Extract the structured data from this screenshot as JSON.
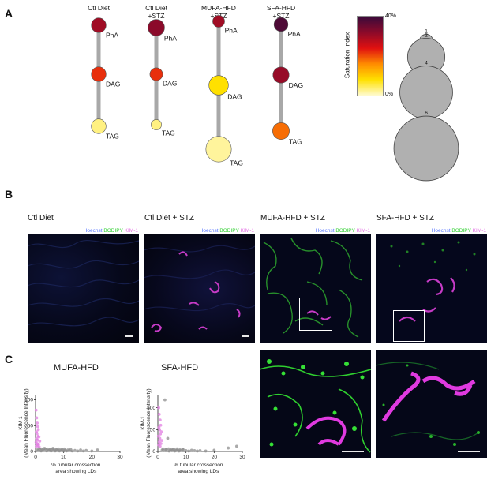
{
  "panel_letters": {
    "a": "A",
    "b": "B",
    "c": "C"
  },
  "panel_a": {
    "conditions": [
      {
        "name_line1": "Ctl Diet",
        "name_line2": "",
        "lipids": [
          {
            "label": "PhA",
            "size": 2,
            "saturation_pct": 30
          },
          {
            "label": "DAG",
            "size": 2,
            "saturation_pct": 22
          },
          {
            "label": "TAG",
            "size": 2,
            "saturation_pct": 3
          }
        ]
      },
      {
        "name_line1": "Ctl Diet",
        "name_line2": "+STZ",
        "lipids": [
          {
            "label": "PhA",
            "size": 2.5,
            "saturation_pct": 32
          },
          {
            "label": "DAG",
            "size": 1.5,
            "saturation_pct": 22
          },
          {
            "label": "TAG",
            "size": 1,
            "saturation_pct": 3
          }
        ]
      },
      {
        "name_line1": "MUFA-HFD",
        "name_line2": "+STZ",
        "lipids": [
          {
            "label": "PhA",
            "size": 1.3,
            "saturation_pct": 30
          },
          {
            "label": "DAG",
            "size": 3.5,
            "saturation_pct": 8
          },
          {
            "label": "TAG",
            "size": 6,
            "saturation_pct": 2
          }
        ]
      },
      {
        "name_line1": "SFA-HFD",
        "name_line2": "+STZ",
        "lipids": [
          {
            "label": "PhA",
            "size": 1.8,
            "saturation_pct": 38
          },
          {
            "label": "DAG",
            "size": 2.4,
            "saturation_pct": 31
          },
          {
            "label": "TAG",
            "size": 2.6,
            "saturation_pct": 18
          }
        ]
      }
    ],
    "colorbar": {
      "title": "Saturation Index",
      "max_label": "40%",
      "min_label": "0%",
      "colors": [
        "#fffbd0",
        "#ffe000",
        "#ff8c00",
        "#e01010",
        "#8b0a2a",
        "#3a0a3a"
      ]
    },
    "size_legend": [
      {
        "label": "1",
        "size": 1
      },
      {
        "label": "2",
        "size": 2
      },
      {
        "label": "4",
        "size": 4
      },
      {
        "label": "6",
        "size": 6
      }
    ],
    "colors": {
      "bubble_stroke": "#555555",
      "connector": "#a8a8a8",
      "legend_bubble": "#b0b0b0"
    }
  },
  "panel_b": {
    "titles": [
      "Ctl Diet",
      "Ctl Diet + STZ",
      "MUFA-HFD + STZ",
      "SFA-HFD + STZ"
    ],
    "channel_hoechst": "Hoechst",
    "channel_bodipy": "BODIPY",
    "channel_kim": "KIM-1",
    "channel_colors": {
      "hoechst": "#5a78ff",
      "bodipy": "#2fcf2f",
      "kim": "#e36be3"
    }
  },
  "panel_c": {
    "charts": [
      {
        "title": "MUFA-HFD",
        "ylabel_line1": "KIM-1",
        "ylabel_line2": "(Mean Fluorescence Intensity)",
        "xlabel_line1": "% tubular crossection",
        "xlabel_line2": "area showing LDs",
        "xticks": [
          0,
          10,
          20,
          30
        ],
        "yticks": [
          0,
          50,
          100
        ]
      },
      {
        "title": "SFA-HFD",
        "ylabel_line1": "KIM-1",
        "ylabel_line2": "(Mean Fluorescence Intensity)",
        "xlabel_line1": "% tubular crossection",
        "xlabel_line2": "area showing LDs",
        "xticks": [
          0,
          10,
          20,
          30
        ],
        "yticks": [
          0,
          50,
          100
        ]
      }
    ]
  },
  "chart_data": [
    {
      "type": "scatter",
      "title": "MUFA-HFD",
      "xlabel": "% tubular crossection area showing LDs",
      "ylabel": "KIM-1 (Mean Fluorescence Intensity)",
      "xlim": [
        0,
        30
      ],
      "ylim": [
        0,
        110
      ],
      "series": [
        {
          "color": "#e27ee2",
          "x": [
            0.2,
            0.4,
            0.6,
            0.8,
            1.0,
            0.3,
            0.5,
            0.9,
            1.2,
            0.4,
            0.7,
            1.5,
            0.2,
            0.6,
            1.1,
            0.8,
            0.3,
            1.3
          ],
          "y": [
            80,
            65,
            55,
            48,
            42,
            38,
            35,
            30,
            28,
            25,
            22,
            20,
            18,
            15,
            14,
            12,
            10,
            9
          ]
        },
        {
          "color": "#8e8e8e",
          "x": [
            0.5,
            1,
            1.5,
            2,
            2.5,
            3,
            3.5,
            4,
            4.5,
            5,
            5.5,
            6,
            6.5,
            7,
            7.5,
            8,
            8.5,
            9,
            9.5,
            10,
            10.5,
            11,
            11.5,
            12,
            13,
            14,
            15,
            16,
            17,
            18,
            20,
            22,
            1.2,
            2.2,
            3.2,
            4.2,
            5.2,
            6.2,
            7.2,
            8.2,
            9.2,
            10.2,
            12.5
          ],
          "y": [
            3,
            2,
            4,
            1,
            3,
            2,
            5,
            1,
            2,
            3,
            1,
            4,
            2,
            1,
            3,
            2,
            1,
            2,
            3,
            1,
            2,
            1,
            3,
            2,
            1,
            2,
            1,
            3,
            1,
            2,
            1,
            3,
            6,
            5,
            6,
            5,
            4,
            6,
            4,
            5,
            4,
            5,
            4
          ]
        }
      ]
    },
    {
      "type": "scatter",
      "title": "SFA-HFD",
      "xlabel": "% tubular crossection area showing LDs",
      "ylabel": "KIM-1 (Mean Fluorescence Intensity)",
      "xlim": [
        0,
        30
      ],
      "ylim": [
        0,
        130
      ],
      "series": [
        {
          "color": "#e27ee2",
          "x": [
            0.3,
            0.5,
            0.8,
            1.0,
            0.4,
            0.6,
            1.2,
            0.9,
            0.2,
            0.7,
            1.4,
            0.5,
            1.1,
            0.3,
            0.8
          ],
          "y": [
            100,
            85,
            72,
            60,
            55,
            50,
            45,
            40,
            35,
            30,
            25,
            22,
            18,
            15,
            12
          ]
        },
        {
          "color": "#8e8e8e",
          "x": [
            2.5,
            3.5,
            1.5,
            2,
            3,
            4,
            4.5,
            5,
            5.5,
            6,
            6.5,
            7,
            7.5,
            8,
            9,
            10,
            11,
            12,
            13,
            14,
            15,
            17,
            20,
            25,
            28,
            1.8,
            2.8,
            3.8,
            4.8,
            5.8,
            6.8,
            7.8,
            8.8
          ],
          "y": [
            118,
            30,
            3,
            2,
            4,
            1,
            3,
            2,
            5,
            1,
            2,
            3,
            1,
            2,
            4,
            2,
            1,
            3,
            2,
            1,
            2,
            1,
            3,
            8,
            12,
            6,
            5,
            6,
            5,
            4,
            6,
            4,
            5
          ]
        }
      ]
    }
  ]
}
